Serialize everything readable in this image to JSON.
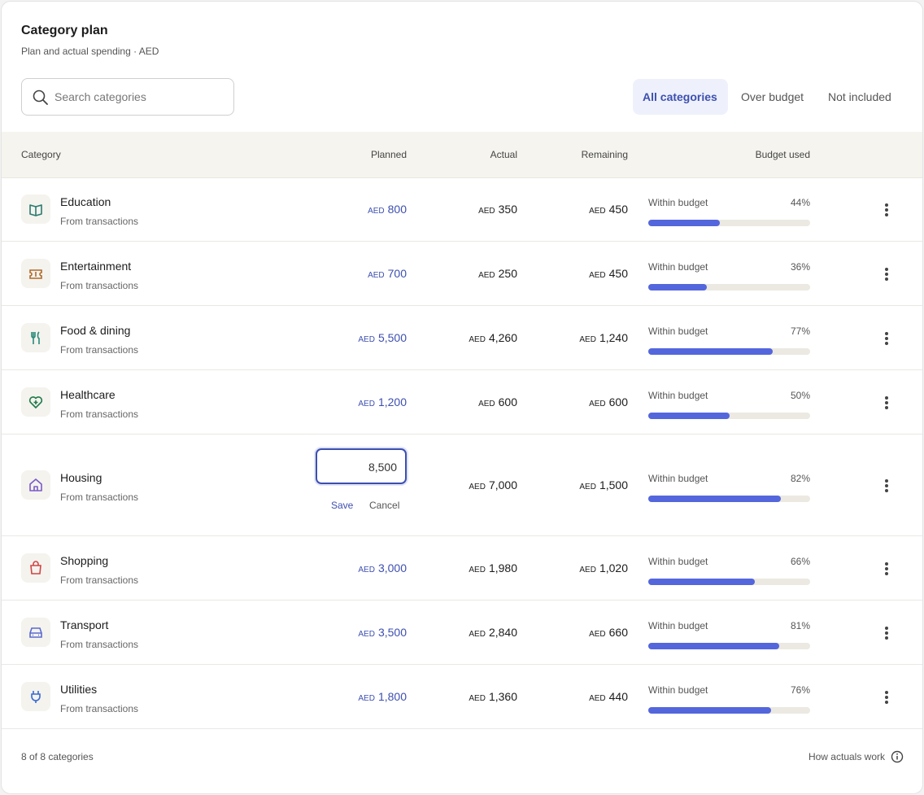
{
  "header": {
    "title": "Category plan",
    "subtitle": "Plan and actual spending · AED"
  },
  "search": {
    "placeholder": "Search categories"
  },
  "tabs": [
    "All categories",
    "Over budget",
    "Not included"
  ],
  "columns": [
    "Category",
    "Planned",
    "Actual",
    "Remaining",
    "Budget used"
  ],
  "currency": "AED",
  "rows": [
    {
      "name": "Education",
      "source": "From transactions",
      "planned": "800",
      "actual": "350",
      "remaining": "450",
      "status": "Within budget",
      "used": {
        "value": 44,
        "label": "44%"
      }
    },
    {
      "name": "Entertainment",
      "source": "From transactions",
      "planned": "700",
      "actual": "250",
      "remaining": "450",
      "status": "Within budget",
      "used": {
        "value": 36,
        "label": "36%"
      }
    },
    {
      "name": "Food & dining",
      "source": "From transactions",
      "planned": "5,500",
      "actual": "4,260",
      "remaining": "1,240",
      "status": "Within budget",
      "used": {
        "value": 77,
        "label": "77%"
      }
    },
    {
      "name": "Healthcare",
      "source": "From transactions",
      "planned": "1,200",
      "actual": "600",
      "remaining": "600",
      "status": "Within budget",
      "used": {
        "value": 50,
        "label": "50%"
      }
    },
    {
      "name": "Housing",
      "source": "From transactions",
      "planned": "8,500",
      "edit": {
        "save": "Save",
        "cancel": "Cancel"
      },
      "actual": "7,000",
      "remaining": "1,500",
      "status": "Within budget",
      "used": {
        "value": 82,
        "label": "82%"
      }
    },
    {
      "name": "Shopping",
      "source": "From transactions",
      "planned": "3,000",
      "actual": "1,980",
      "remaining": "1,020",
      "status": "Within budget",
      "used": {
        "value": 66,
        "label": "66%"
      }
    },
    {
      "name": "Transport",
      "source": "From transactions",
      "planned": "3,500",
      "actual": "2,840",
      "remaining": "660",
      "status": "Within budget",
      "used": {
        "value": 81,
        "label": "81%"
      }
    },
    {
      "name": "Utilities",
      "source": "From transactions",
      "planned": "1,800",
      "actual": "1,360",
      "remaining": "440",
      "status": "Within budget",
      "used": {
        "value": 76,
        "label": "76%"
      }
    }
  ],
  "footer": {
    "count": "8 of 8 categories",
    "help": "How actuals work"
  }
}
